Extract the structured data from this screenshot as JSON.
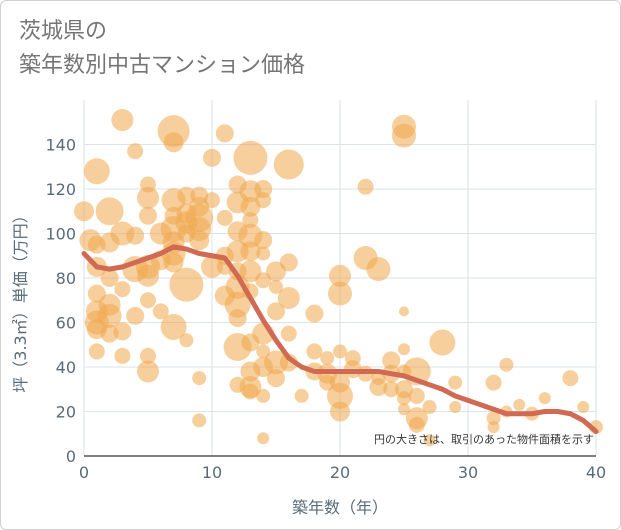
{
  "chart_data": {
    "type": "scatter",
    "title": "茨城県の\n築年数別中古マンション価格",
    "xlabel": "築年数（年）",
    "ylabel": "坪（3.3㎡）単価（万円）",
    "xlim": [
      0,
      40
    ],
    "ylim": [
      0,
      160
    ],
    "xticks": [
      0,
      10,
      20,
      30,
      40
    ],
    "yticks": [
      0,
      20,
      40,
      60,
      80,
      100,
      120,
      140
    ],
    "grid": true,
    "note": "円の大きさは、取引のあった物件面積を示す",
    "colors": {
      "bubble": "#f0a84c",
      "trend": "#d06a52",
      "grid": "#dde3ea"
    },
    "trend": {
      "x": [
        0,
        1,
        2,
        3,
        4,
        5,
        6,
        7,
        8,
        9,
        10,
        11,
        12,
        13,
        14,
        15,
        16,
        17,
        18,
        19,
        20,
        21,
        22,
        23,
        24,
        25,
        26,
        27,
        28,
        29,
        30,
        31,
        32,
        33,
        34,
        35,
        36,
        37,
        38,
        39,
        40
      ],
      "y": [
        91,
        85,
        84,
        85,
        87,
        89,
        91,
        94,
        93,
        91,
        90,
        89,
        81,
        71,
        61,
        52,
        44,
        40,
        38,
        38,
        38,
        38,
        38,
        38,
        37,
        36,
        34,
        32,
        30,
        27,
        25,
        23,
        21,
        19,
        19,
        19,
        20,
        20,
        19,
        16,
        11
      ]
    },
    "bubbles": [
      [
        0,
        110,
        10
      ],
      [
        0.5,
        97,
        11
      ],
      [
        1,
        128,
        13
      ],
      [
        1,
        95,
        9
      ],
      [
        1,
        85,
        10
      ],
      [
        1,
        73,
        9
      ],
      [
        1,
        65,
        11
      ],
      [
        1,
        60,
        12
      ],
      [
        1,
        57,
        10
      ],
      [
        1,
        47,
        8
      ],
      [
        2,
        110,
        14
      ],
      [
        2,
        96,
        10
      ],
      [
        2,
        80,
        9
      ],
      [
        2,
        68,
        11
      ],
      [
        2,
        63,
        12
      ],
      [
        2,
        55,
        9
      ],
      [
        3,
        151,
        11
      ],
      [
        3,
        100,
        12
      ],
      [
        3,
        75,
        8
      ],
      [
        3,
        56,
        9
      ],
      [
        3,
        45,
        8
      ],
      [
        4,
        137,
        8
      ],
      [
        4,
        99,
        9
      ],
      [
        4,
        84,
        13
      ],
      [
        4,
        63,
        9
      ],
      [
        5,
        122,
        8
      ],
      [
        5,
        116,
        11
      ],
      [
        5,
        108,
        9
      ],
      [
        5,
        85,
        12
      ],
      [
        5,
        81,
        11
      ],
      [
        5,
        70,
        8
      ],
      [
        5,
        45,
        8
      ],
      [
        5,
        38,
        11
      ],
      [
        6,
        100,
        11
      ],
      [
        6,
        88,
        10
      ],
      [
        6,
        65,
        8
      ],
      [
        7,
        146,
        16
      ],
      [
        7,
        141,
        10
      ],
      [
        7,
        115,
        12
      ],
      [
        7,
        108,
        9
      ],
      [
        7,
        102,
        13
      ],
      [
        7,
        96,
        11
      ],
      [
        7,
        91,
        12
      ],
      [
        7,
        87,
        10
      ],
      [
        7,
        58,
        13
      ],
      [
        8,
        117,
        9
      ],
      [
        8,
        109,
        10
      ],
      [
        8,
        105,
        11
      ],
      [
        8,
        100,
        9
      ],
      [
        8,
        77,
        17
      ],
      [
        8,
        52,
        7
      ],
      [
        9,
        117,
        9
      ],
      [
        9,
        112,
        10
      ],
      [
        9,
        107,
        14
      ],
      [
        9,
        102,
        12
      ],
      [
        9,
        97,
        10
      ],
      [
        9,
        35,
        7
      ],
      [
        9,
        16,
        7
      ],
      [
        10,
        134,
        9
      ],
      [
        10,
        115,
        8
      ],
      [
        10,
        85,
        11
      ],
      [
        11,
        145,
        9
      ],
      [
        11,
        107,
        8
      ],
      [
        11,
        90,
        9
      ],
      [
        11,
        85,
        8
      ],
      [
        11,
        72,
        10
      ],
      [
        12,
        122,
        9
      ],
      [
        12,
        114,
        11
      ],
      [
        12,
        101,
        10
      ],
      [
        12,
        92,
        11
      ],
      [
        12,
        83,
        9
      ],
      [
        12,
        76,
        12
      ],
      [
        12,
        68,
        13
      ],
      [
        12,
        62,
        9
      ],
      [
        12,
        49,
        14
      ],
      [
        12,
        32,
        8
      ],
      [
        13,
        134,
        17
      ],
      [
        13,
        119,
        11
      ],
      [
        13,
        112,
        10
      ],
      [
        13,
        106,
        8
      ],
      [
        13,
        99,
        12
      ],
      [
        13,
        92,
        10
      ],
      [
        13,
        83,
        11
      ],
      [
        13,
        74,
        8
      ],
      [
        13,
        51,
        9
      ],
      [
        13,
        38,
        10
      ],
      [
        13,
        31,
        11
      ],
      [
        13,
        29,
        8
      ],
      [
        14,
        120,
        9
      ],
      [
        14,
        115,
        8
      ],
      [
        14,
        97,
        9
      ],
      [
        14,
        91,
        7
      ],
      [
        14,
        79,
        8
      ],
      [
        14,
        55,
        11
      ],
      [
        14,
        47,
        7
      ],
      [
        14,
        40,
        10
      ],
      [
        14,
        27,
        7
      ],
      [
        14,
        8,
        6
      ],
      [
        15,
        83,
        10
      ],
      [
        15,
        76,
        7
      ],
      [
        15,
        65,
        9
      ],
      [
        15,
        42,
        12
      ],
      [
        15,
        35,
        9
      ],
      [
        16,
        131,
        15
      ],
      [
        16,
        87,
        9
      ],
      [
        16,
        71,
        11
      ],
      [
        16,
        55,
        8
      ],
      [
        16,
        42,
        9
      ],
      [
        17,
        27,
        7
      ],
      [
        18,
        64,
        9
      ],
      [
        18,
        47,
        8
      ],
      [
        18,
        38,
        9
      ],
      [
        19,
        44,
        7
      ],
      [
        19,
        37,
        10
      ],
      [
        19,
        33,
        8
      ],
      [
        20,
        81,
        11
      ],
      [
        20,
        73,
        12
      ],
      [
        20,
        47,
        7
      ],
      [
        20,
        33,
        10
      ],
      [
        20,
        27,
        13
      ],
      [
        20,
        20,
        10
      ],
      [
        21,
        44,
        8
      ],
      [
        21,
        39,
        9
      ],
      [
        22,
        121,
        8
      ],
      [
        22,
        89,
        12
      ],
      [
        22,
        37,
        8
      ],
      [
        23,
        84,
        12
      ],
      [
        23,
        35,
        7
      ],
      [
        23,
        31,
        9
      ],
      [
        24,
        43,
        9
      ],
      [
        24,
        37,
        9
      ],
      [
        24,
        30,
        8
      ],
      [
        25,
        148,
        12
      ],
      [
        25,
        144,
        12
      ],
      [
        25,
        65,
        5
      ],
      [
        25,
        48,
        6
      ],
      [
        25,
        38,
        7
      ],
      [
        25,
        30,
        9
      ],
      [
        25,
        26,
        7
      ],
      [
        25,
        21,
        6
      ],
      [
        26,
        38,
        14
      ],
      [
        26,
        27,
        8
      ],
      [
        26,
        17,
        11
      ],
      [
        26,
        14,
        8
      ],
      [
        27,
        22,
        7
      ],
      [
        27,
        7,
        6
      ],
      [
        28,
        51,
        13
      ],
      [
        29,
        33,
        7
      ],
      [
        29,
        22,
        6
      ],
      [
        32,
        33,
        8
      ],
      [
        32,
        17,
        7
      ],
      [
        32,
        13,
        6
      ],
      [
        33,
        41,
        7
      ],
      [
        33,
        20,
        6
      ],
      [
        34,
        23,
        6
      ],
      [
        35,
        19,
        7
      ],
      [
        36,
        26,
        6
      ],
      [
        38,
        35,
        8
      ],
      [
        39,
        22,
        6
      ],
      [
        40,
        13,
        7
      ]
    ]
  }
}
